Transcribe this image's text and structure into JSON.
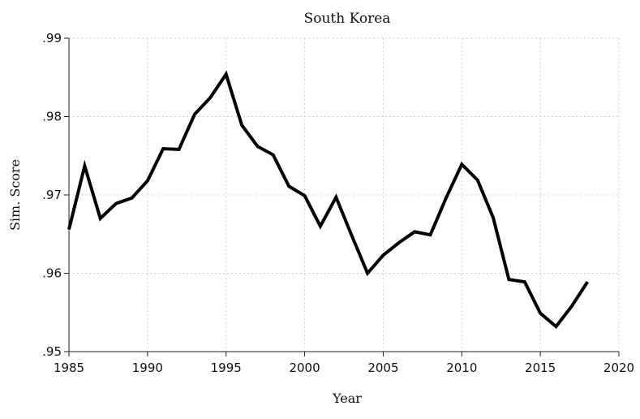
{
  "chart_data": {
    "type": "line",
    "title": "South Korea",
    "xlabel": "Year",
    "ylabel": "Sim. Score",
    "xlim": [
      1985,
      2020
    ],
    "ylim": [
      0.95,
      0.99
    ],
    "xticks": [
      1985,
      1990,
      1995,
      2000,
      2005,
      2010,
      2015,
      2020
    ],
    "xtick_labels": [
      "1985",
      "1990",
      "1995",
      "2000",
      "2005",
      "2010",
      "2015",
      "2020"
    ],
    "yticks": [
      0.95,
      0.96,
      0.97,
      0.98,
      0.99
    ],
    "ytick_labels": [
      ".95",
      ".96",
      ".97",
      ".98",
      ".99"
    ],
    "grid": true,
    "series": [
      {
        "x": [
          1985,
          1986,
          1987,
          1988,
          1989,
          1990,
          1991,
          1992,
          1993,
          1994,
          1995,
          1996,
          1997,
          1998,
          1999,
          2000,
          2001,
          2002,
          2003,
          2004,
          2005,
          2006,
          2007,
          2008,
          2009,
          2010,
          2011,
          2012,
          2013,
          2014,
          2015,
          2016,
          2017,
          2018
        ],
        "y": [
          0.9656,
          0.9737,
          0.967,
          0.9689,
          0.9696,
          0.9718,
          0.9759,
          0.9758,
          0.9803,
          0.9824,
          0.9854,
          0.9789,
          0.9762,
          0.9751,
          0.9711,
          0.9699,
          0.966,
          0.9697,
          0.9648,
          0.96,
          0.9623,
          0.9639,
          0.9653,
          0.9649,
          0.9696,
          0.9739,
          0.9719,
          0.9671,
          0.9592,
          0.9589,
          0.9549,
          0.9532,
          0.9558,
          0.9589
        ],
        "color": "#000000"
      }
    ]
  }
}
